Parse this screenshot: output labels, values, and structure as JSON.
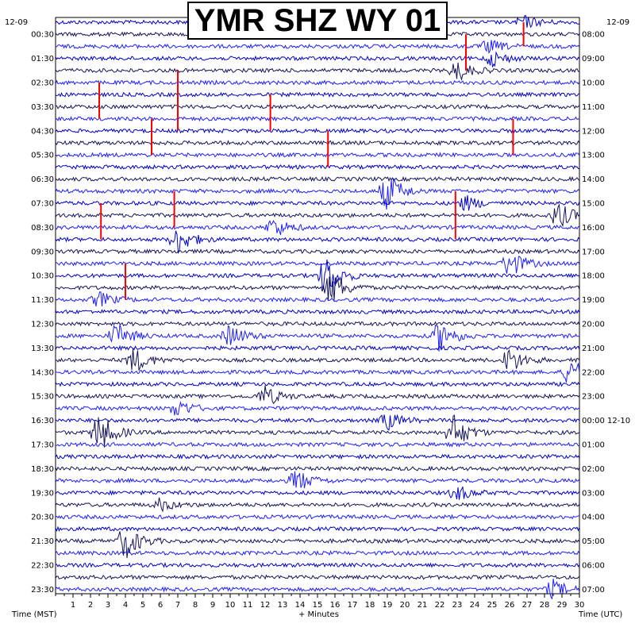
{
  "chart_data": {
    "type": "line",
    "title": "YMR SHZ WY 01",
    "date_left": "12-09",
    "date_right": "12-09",
    "left_tz_label": "Time (MST)",
    "right_tz_label": "Time (UTC)",
    "xlabel": "+ Minutes",
    "x_ticks": [
      "1",
      "2",
      "3",
      "4",
      "5",
      "6",
      "7",
      "8",
      "9",
      "10",
      "11",
      "12",
      "13",
      "14",
      "15",
      "16",
      "17",
      "18",
      "19",
      "20",
      "21",
      "22",
      "23",
      "24",
      "25",
      "26",
      "27",
      "28",
      "29",
      "30"
    ],
    "xlim": [
      0,
      30
    ],
    "left_time_labels": [
      "00:30",
      "01:30",
      "02:30",
      "03:30",
      "04:30",
      "05:30",
      "06:30",
      "07:30",
      "08:30",
      "09:30",
      "10:30",
      "11:30",
      "12:30",
      "13:30",
      "14:30",
      "15:30",
      "16:30",
      "17:30",
      "18:30",
      "19:30",
      "20:30",
      "21:30",
      "22:30",
      "23:30"
    ],
    "right_time_labels": [
      "08:00",
      "09:00",
      "10:00",
      "11:00",
      "12:00",
      "13:00",
      "14:00",
      "15:00",
      "16:00",
      "17:00",
      "18:00",
      "19:00",
      "20:00",
      "21:00",
      "22:00",
      "23:00",
      "00:00 12-10",
      "01:00",
      "02:00",
      "03:00",
      "04:00",
      "05:00",
      "06:00",
      "07:00"
    ],
    "traces_per_hour": 2,
    "total_traces": 48,
    "trace_colors": [
      "#0000c8",
      "#14145a",
      "#1e1eff"
    ],
    "clip_color": "#ff0000",
    "events": [
      {
        "trace": 3,
        "minute": 25.0,
        "amp": 1.2
      },
      {
        "trace": 2,
        "minute": 24.8,
        "amp": 1.0
      },
      {
        "trace": 4,
        "minute": 23.0,
        "amp": 1.6
      },
      {
        "trace": 0,
        "minute": 26.8,
        "amp": 1.0
      },
      {
        "trace": 14,
        "minute": 19.0,
        "amp": 3.0
      },
      {
        "trace": 15,
        "minute": 23.5,
        "amp": 1.2
      },
      {
        "trace": 16,
        "minute": 28.8,
        "amp": 2.0
      },
      {
        "trace": 17,
        "minute": 12.5,
        "amp": 1.6
      },
      {
        "trace": 18,
        "minute": 7.0,
        "amp": 2.2
      },
      {
        "trace": 20,
        "minute": 26.0,
        "amp": 2.2
      },
      {
        "trace": 21,
        "minute": 15.5,
        "amp": 3.2
      },
      {
        "trace": 22,
        "minute": 15.8,
        "amp": 2.6
      },
      {
        "trace": 23,
        "minute": 2.5,
        "amp": 1.2
      },
      {
        "trace": 26,
        "minute": 3.5,
        "amp": 2.0
      },
      {
        "trace": 26,
        "minute": 10.0,
        "amp": 1.8
      },
      {
        "trace": 26,
        "minute": 22.0,
        "amp": 2.4
      },
      {
        "trace": 28,
        "minute": 4.5,
        "amp": 2.0
      },
      {
        "trace": 28,
        "minute": 26.0,
        "amp": 2.0
      },
      {
        "trace": 29,
        "minute": 29.5,
        "amp": 2.4
      },
      {
        "trace": 31,
        "minute": 12.0,
        "amp": 1.6
      },
      {
        "trace": 32,
        "minute": 7.0,
        "amp": 1.4
      },
      {
        "trace": 33,
        "minute": 19.0,
        "amp": 1.4
      },
      {
        "trace": 34,
        "minute": 2.5,
        "amp": 3.2
      },
      {
        "trace": 34,
        "minute": 22.8,
        "amp": 2.8
      },
      {
        "trace": 38,
        "minute": 13.8,
        "amp": 1.8
      },
      {
        "trace": 39,
        "minute": 23.0,
        "amp": 1.2
      },
      {
        "trace": 40,
        "minute": 6.0,
        "amp": 1.0
      },
      {
        "trace": 43,
        "minute": 4.0,
        "amp": 2.8
      },
      {
        "trace": 47,
        "minute": 28.5,
        "amp": 1.4
      }
    ],
    "clipped_events": [
      {
        "trace": 0,
        "minute": 26.8,
        "top_trace": 0,
        "bottom_trace": 2
      },
      {
        "trace": 2,
        "minute": 23.5,
        "top_trace": 1,
        "bottom_trace": 4
      },
      {
        "trace": 17,
        "minute": 2.5,
        "top_trace": 5,
        "bottom_trace": 8
      },
      {
        "trace": 17,
        "minute": 7.0,
        "top_trace": 4,
        "bottom_trace": 9
      },
      {
        "trace": 17,
        "minute": 12.3,
        "top_trace": 6,
        "bottom_trace": 9
      },
      {
        "trace": 19,
        "minute": 5.5,
        "top_trace": 8,
        "bottom_trace": 11
      },
      {
        "trace": 21,
        "minute": 26.2,
        "top_trace": 8,
        "bottom_trace": 11
      },
      {
        "trace": 22,
        "minute": 15.6,
        "top_trace": 9,
        "bottom_trace": 12
      },
      {
        "trace": 34,
        "minute": 2.6,
        "top_trace": 15,
        "bottom_trace": 18
      },
      {
        "trace": 32,
        "minute": 6.8,
        "top_trace": 14,
        "bottom_trace": 17
      },
      {
        "trace": 34,
        "minute": 22.9,
        "top_trace": 14,
        "bottom_trace": 18
      },
      {
        "trace": 43,
        "minute": 4.0,
        "top_trace": 20,
        "bottom_trace": 23
      }
    ]
  }
}
